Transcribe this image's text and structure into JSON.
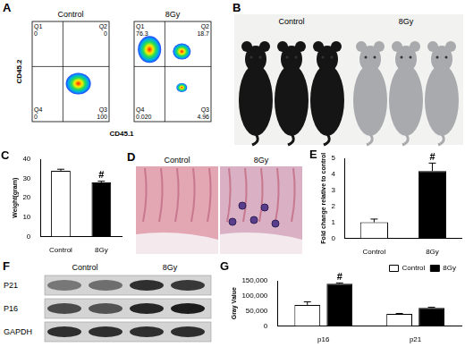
{
  "figure": {
    "A": {
      "label": "A",
      "x_label": "CD45.1",
      "y_label": "CD45.2",
      "plots": [
        {
          "title": "Control",
          "quadrants": [
            {
              "name": "Q1",
              "value": 0
            },
            {
              "name": "Q2",
              "value": 0
            },
            {
              "name": "Q3",
              "value": 100
            },
            {
              "name": "Q4",
              "value": 0
            }
          ]
        },
        {
          "title": "8Gy",
          "quadrants": [
            {
              "name": "Q1",
              "value": 76.3
            },
            {
              "name": "Q2",
              "value": 18.7
            },
            {
              "name": "Q3",
              "value": 4.96
            },
            {
              "name": "Q4",
              "value": 0.02,
              "label": "0.020"
            }
          ]
        }
      ]
    },
    "B": {
      "label": "B",
      "groups": [
        "Control",
        "8Gy"
      ]
    },
    "D": {
      "label": "D",
      "groups": [
        "Control",
        "8Gy"
      ]
    },
    "F": {
      "label": "F",
      "groups": [
        "Control",
        "8Gy"
      ],
      "bands": [
        "P21",
        "P16",
        "GAPDH"
      ]
    }
  },
  "chart_data": [
    {
      "type": "bar",
      "title": "C",
      "categories": [
        "Control",
        "8Gy"
      ],
      "values": [
        34,
        28
      ],
      "errors": [
        0.8,
        0.6
      ],
      "colors": [
        "#ffffff",
        "#000000"
      ],
      "y_label": "Weight(gram)",
      "ylim": [
        0,
        40
      ],
      "yticks": [
        0,
        10,
        20,
        30,
        40
      ],
      "grid": false,
      "annotations": [
        {
          "category": "8Gy",
          "text": "#"
        }
      ]
    },
    {
      "type": "bar",
      "title": "E",
      "categories": [
        "Control",
        "8Gy"
      ],
      "values": [
        1,
        4.2
      ],
      "errors": [
        0.2,
        0.5
      ],
      "colors": [
        "#ffffff",
        "#000000"
      ],
      "y_label": "Fold change relative to control",
      "ylim": [
        0,
        5
      ],
      "yticks": [
        0,
        1,
        2,
        3,
        4,
        5
      ],
      "grid": false,
      "annotations": [
        {
          "category": "8Gy",
          "text": "#"
        }
      ]
    },
    {
      "type": "bar",
      "title": "G",
      "categories": [
        "p16",
        "p21"
      ],
      "series": [
        {
          "name": "Control",
          "color": "#ffffff",
          "values": [
            70000,
            40000
          ],
          "errors": [
            10000,
            1500
          ]
        },
        {
          "name": "8Gy",
          "color": "#000000",
          "values": [
            140000,
            60000
          ],
          "errors": [
            3000,
            2000
          ]
        }
      ],
      "y_label": "Gray Value",
      "ylim": [
        0,
        150000
      ],
      "yticks": [
        0,
        50000,
        100000,
        150000
      ],
      "legend": "top-right",
      "grid": false,
      "annotations": [
        {
          "category": "p16",
          "series": "8Gy",
          "text": "#"
        }
      ]
    }
  ]
}
